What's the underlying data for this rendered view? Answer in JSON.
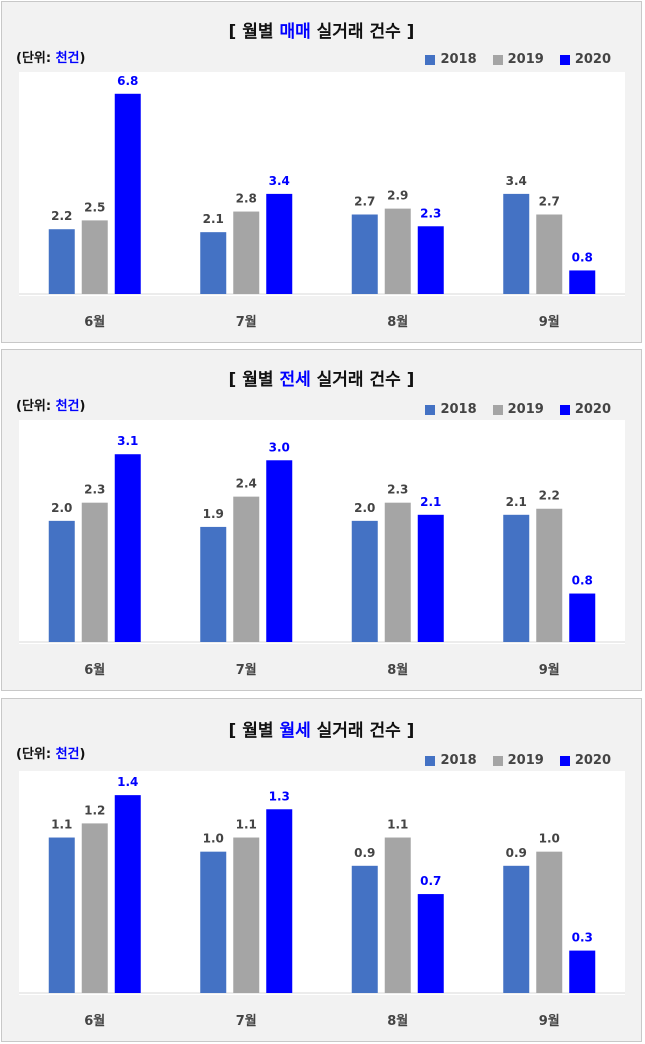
{
  "colors": {
    "s2018": "#4472c4",
    "s2019": "#a5a5a5",
    "s2020": "#0000ff",
    "label_dark": "#444444",
    "label_2020": "#0000ff"
  },
  "unit": {
    "prefix": "(단위: ",
    "highlight": "천건",
    "suffix": ")"
  },
  "chart_data": [
    {
      "type": "bar",
      "title": {
        "prefix": "[ 월별 ",
        "highlight": "매매",
        "suffix": " 실거래 건수 ]"
      },
      "categories": [
        "6월",
        "7월",
        "8월",
        "9월"
      ],
      "series": [
        {
          "name": "2018",
          "values": [
            2.2,
            2.1,
            2.7,
            3.4
          ]
        },
        {
          "name": "2019",
          "values": [
            2.5,
            2.8,
            2.9,
            2.7
          ]
        },
        {
          "name": "2020",
          "values": [
            6.8,
            3.4,
            2.3,
            0.8
          ]
        }
      ],
      "ylim": [
        0,
        7.2
      ],
      "legend_position": "top-right"
    },
    {
      "type": "bar",
      "title": {
        "prefix": "[ 월별 ",
        "highlight": "전세",
        "suffix": " 실거래 건수 ]"
      },
      "categories": [
        "6월",
        "7월",
        "8월",
        "9월"
      ],
      "series": [
        {
          "name": "2018",
          "values": [
            2.0,
            1.9,
            2.0,
            2.1
          ]
        },
        {
          "name": "2019",
          "values": [
            2.3,
            2.4,
            2.3,
            2.2
          ]
        },
        {
          "name": "2020",
          "values": [
            3.1,
            3.0,
            2.1,
            0.8
          ]
        }
      ],
      "ylim": [
        0,
        3.5
      ],
      "legend_position": "top-right"
    },
    {
      "type": "bar",
      "title": {
        "prefix": "[ 월별 ",
        "highlight": "월세",
        "suffix": " 실거래 건수 ]"
      },
      "categories": [
        "6월",
        "7월",
        "8월",
        "9월"
      ],
      "series": [
        {
          "name": "2018",
          "values": [
            1.1,
            1.0,
            0.9,
            0.9
          ]
        },
        {
          "name": "2019",
          "values": [
            1.2,
            1.1,
            1.1,
            1.0
          ]
        },
        {
          "name": "2020",
          "values": [
            1.4,
            1.3,
            0.7,
            0.3
          ]
        }
      ],
      "ylim": [
        0,
        1.5
      ],
      "legend_position": "top-right"
    }
  ]
}
